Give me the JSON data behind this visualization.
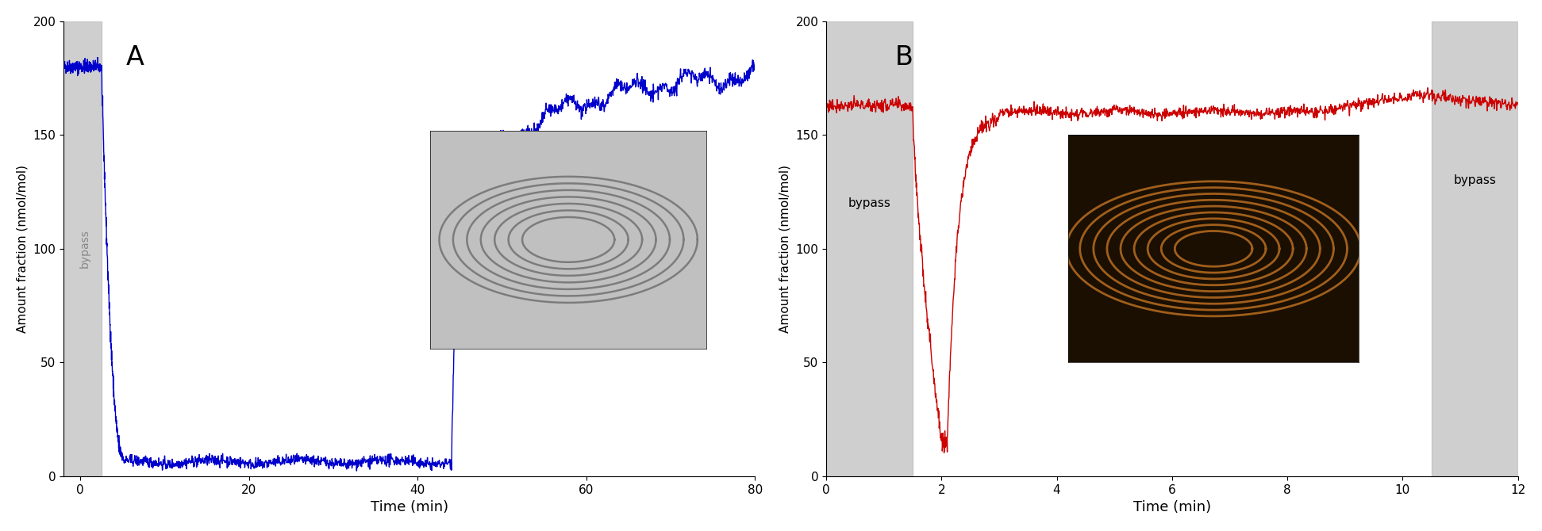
{
  "panel_A": {
    "label": "A",
    "line_color": "#0000cc",
    "line_width": 1.0,
    "xlabel": "Time (min)",
    "ylabel": "Amount fraction (nmol/mol)",
    "xlim": [
      -2,
      80
    ],
    "ylim": [
      0,
      200
    ],
    "xticks": [
      0,
      20,
      40,
      60,
      80
    ],
    "yticks": [
      0,
      50,
      100,
      150,
      200
    ],
    "bypass_xmin": -2,
    "bypass_xmax": 2.5,
    "bypass_label": "bypass",
    "bypass_color": "#bbbbbb",
    "bypass_alpha": 0.7
  },
  "panel_B": {
    "label": "B",
    "line_color": "#cc0000",
    "line_width": 1.0,
    "xlabel": "Time (min)",
    "ylabel": "Amount fraction (nmol/mol)",
    "xlim": [
      0,
      12
    ],
    "ylim": [
      0,
      200
    ],
    "xticks": [
      0,
      2,
      4,
      6,
      8,
      10,
      12
    ],
    "yticks": [
      0,
      50,
      100,
      150,
      200
    ],
    "bypass1_xmin": 0,
    "bypass1_xmax": 1.5,
    "bypass1_label": "bypass",
    "bypass2_xmin": 10.5,
    "bypass2_xmax": 12,
    "bypass2_label": "bypass",
    "bypass_color": "#bbbbbb",
    "bypass_alpha": 0.7
  },
  "background_color": "#ffffff"
}
